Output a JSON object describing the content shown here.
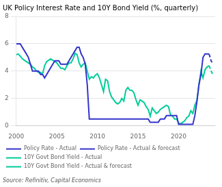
{
  "chart_data": {
    "type": "line",
    "title": "UK Policy Interest Rate and 10Y Bond Yield (%, quarterly)",
    "annotations": [
      "Source: Refinitiv, Capital Economics"
    ],
    "x": [
      2000,
      2000.25,
      2000.5,
      2000.75,
      2001,
      2001.25,
      2001.5,
      2001.75,
      2002,
      2002.25,
      2002.5,
      2002.75,
      2003,
      2003.25,
      2003.5,
      2003.75,
      2004,
      2004.25,
      2004.5,
      2004.75,
      2005,
      2005.25,
      2005.5,
      2005.75,
      2006,
      2006.25,
      2006.5,
      2006.75,
      2007,
      2007.25,
      2007.5,
      2007.75,
      2008,
      2008.25,
      2008.5,
      2008.75,
      2009,
      2009.25,
      2009.5,
      2009.75,
      2010,
      2010.25,
      2010.5,
      2010.75,
      2011,
      2011.25,
      2011.5,
      2011.75,
      2012,
      2012.25,
      2012.5,
      2012.75,
      2013,
      2013.25,
      2013.5,
      2013.75,
      2014,
      2014.25,
      2014.5,
      2014.75,
      2015,
      2015.25,
      2015.5,
      2015.75,
      2016,
      2016.25,
      2016.5,
      2016.75,
      2017,
      2017.25,
      2017.5,
      2017.75,
      2018,
      2018.25,
      2018.5,
      2018.75,
      2019,
      2019.25,
      2019.5,
      2019.75,
      2020,
      2020.25,
      2020.5,
      2020.75,
      2021,
      2021.25,
      2021.5,
      2021.75,
      2022,
      2022.25,
      2022.5,
      2022.75,
      2023,
      2023.25,
      2023.5,
      2023.75,
      2024,
      2024.25
    ],
    "xlim": [
      2000,
      2024.5
    ],
    "xticks": [
      2000,
      2005,
      2010,
      2015,
      2020
    ],
    "ylim": [
      0,
      8
    ],
    "yticks": [
      0,
      2,
      4,
      6,
      8
    ],
    "grid": "y",
    "legend": "bottom",
    "series": [
      {
        "name": "Policy Rate - Actual",
        "color": "#3333CC",
        "line_style": "solid",
        "values": [
          6.0,
          6.0,
          6.0,
          5.75,
          5.5,
          5.25,
          5.0,
          4.5,
          4.0,
          4.0,
          4.0,
          4.0,
          3.75,
          3.75,
          3.5,
          3.75,
          4.0,
          4.25,
          4.5,
          4.75,
          4.75,
          4.75,
          4.5,
          4.5,
          4.5,
          4.5,
          4.75,
          5.0,
          5.25,
          5.5,
          5.75,
          5.75,
          5.25,
          5.0,
          4.5,
          3.0,
          0.5,
          0.5,
          0.5,
          0.5,
          0.5,
          0.5,
          0.5,
          0.5,
          0.5,
          0.5,
          0.5,
          0.5,
          0.5,
          0.5,
          0.5,
          0.5,
          0.5,
          0.5,
          0.5,
          0.5,
          0.5,
          0.5,
          0.5,
          0.5,
          0.5,
          0.5,
          0.5,
          0.5,
          0.5,
          0.5,
          0.25,
          0.25,
          0.25,
          0.25,
          0.25,
          0.5,
          0.5,
          0.5,
          0.75,
          0.75,
          0.75,
          0.75,
          0.75,
          0.75,
          0.1,
          0.1,
          0.1,
          0.1,
          0.1,
          0.1,
          0.1,
          0.1,
          0.75,
          1.75,
          3.0,
          3.75,
          5.0,
          5.25,
          5.25,
          5.25,
          null,
          null
        ]
      },
      {
        "name": "Policy Rate - Actual & forecast",
        "color": "#3333CC",
        "line_style": "dashed",
        "values": [
          null,
          null,
          null,
          null,
          null,
          null,
          null,
          null,
          null,
          null,
          null,
          null,
          null,
          null,
          null,
          null,
          null,
          null,
          null,
          null,
          null,
          null,
          null,
          null,
          null,
          null,
          null,
          null,
          null,
          null,
          null,
          null,
          null,
          null,
          null,
          null,
          null,
          null,
          null,
          null,
          null,
          null,
          null,
          null,
          null,
          null,
          null,
          null,
          null,
          null,
          null,
          null,
          null,
          null,
          null,
          null,
          null,
          null,
          null,
          null,
          null,
          null,
          null,
          null,
          null,
          null,
          null,
          null,
          null,
          null,
          null,
          null,
          null,
          null,
          null,
          null,
          null,
          null,
          null,
          null,
          null,
          null,
          null,
          null,
          null,
          null,
          null,
          null,
          null,
          null,
          null,
          null,
          null,
          null,
          null,
          5.25,
          4.75,
          4.5
        ]
      },
      {
        "name": "10Y Govt Bond Yield - Actual",
        "color": "#00CC99",
        "line_style": "solid",
        "values": [
          5.2,
          5.25,
          5.1,
          4.9,
          4.8,
          4.7,
          4.6,
          4.5,
          4.3,
          4.2,
          4.0,
          3.9,
          3.9,
          3.8,
          4.4,
          4.7,
          4.8,
          4.9,
          4.8,
          4.7,
          4.6,
          4.4,
          4.2,
          4.2,
          4.1,
          4.4,
          4.6,
          4.6,
          4.9,
          5.3,
          5.2,
          4.6,
          4.3,
          4.5,
          4.6,
          4.0,
          3.4,
          3.6,
          3.5,
          3.7,
          3.8,
          3.5,
          3.0,
          2.5,
          3.4,
          3.3,
          2.5,
          2.1,
          1.9,
          1.7,
          1.6,
          1.7,
          2.0,
          1.8,
          2.6,
          2.8,
          2.6,
          2.6,
          2.4,
          1.9,
          1.5,
          1.9,
          1.8,
          1.7,
          1.4,
          1.2,
          0.7,
          1.3,
          1.1,
          0.9,
          1.0,
          1.2,
          1.3,
          1.4,
          1.5,
          1.4,
          0.8,
          0.7,
          0.5,
          0.5,
          0.2,
          0.15,
          0.25,
          0.35,
          0.6,
          0.7,
          1.1,
          0.9,
          1.5,
          1.85,
          3.0,
          4.0,
          3.5,
          4.1,
          4.3,
          4.4,
          null,
          null
        ]
      },
      {
        "name": "10Y Govt Bond Yield - Actual & forecast",
        "color": "#00CC99",
        "line_style": "dashed",
        "values": [
          null,
          null,
          null,
          null,
          null,
          null,
          null,
          null,
          null,
          null,
          null,
          null,
          null,
          null,
          null,
          null,
          null,
          null,
          null,
          null,
          null,
          null,
          null,
          null,
          null,
          null,
          null,
          null,
          null,
          null,
          null,
          null,
          null,
          null,
          null,
          null,
          null,
          null,
          null,
          null,
          null,
          null,
          null,
          null,
          null,
          null,
          null,
          null,
          null,
          null,
          null,
          null,
          null,
          null,
          null,
          null,
          null,
          null,
          null,
          null,
          null,
          null,
          null,
          null,
          null,
          null,
          null,
          null,
          null,
          null,
          null,
          null,
          null,
          null,
          null,
          null,
          null,
          null,
          null,
          null,
          null,
          null,
          null,
          null,
          null,
          null,
          null,
          null,
          null,
          null,
          null,
          null,
          null,
          null,
          null,
          4.4,
          4.0,
          3.7
        ]
      }
    ]
  }
}
